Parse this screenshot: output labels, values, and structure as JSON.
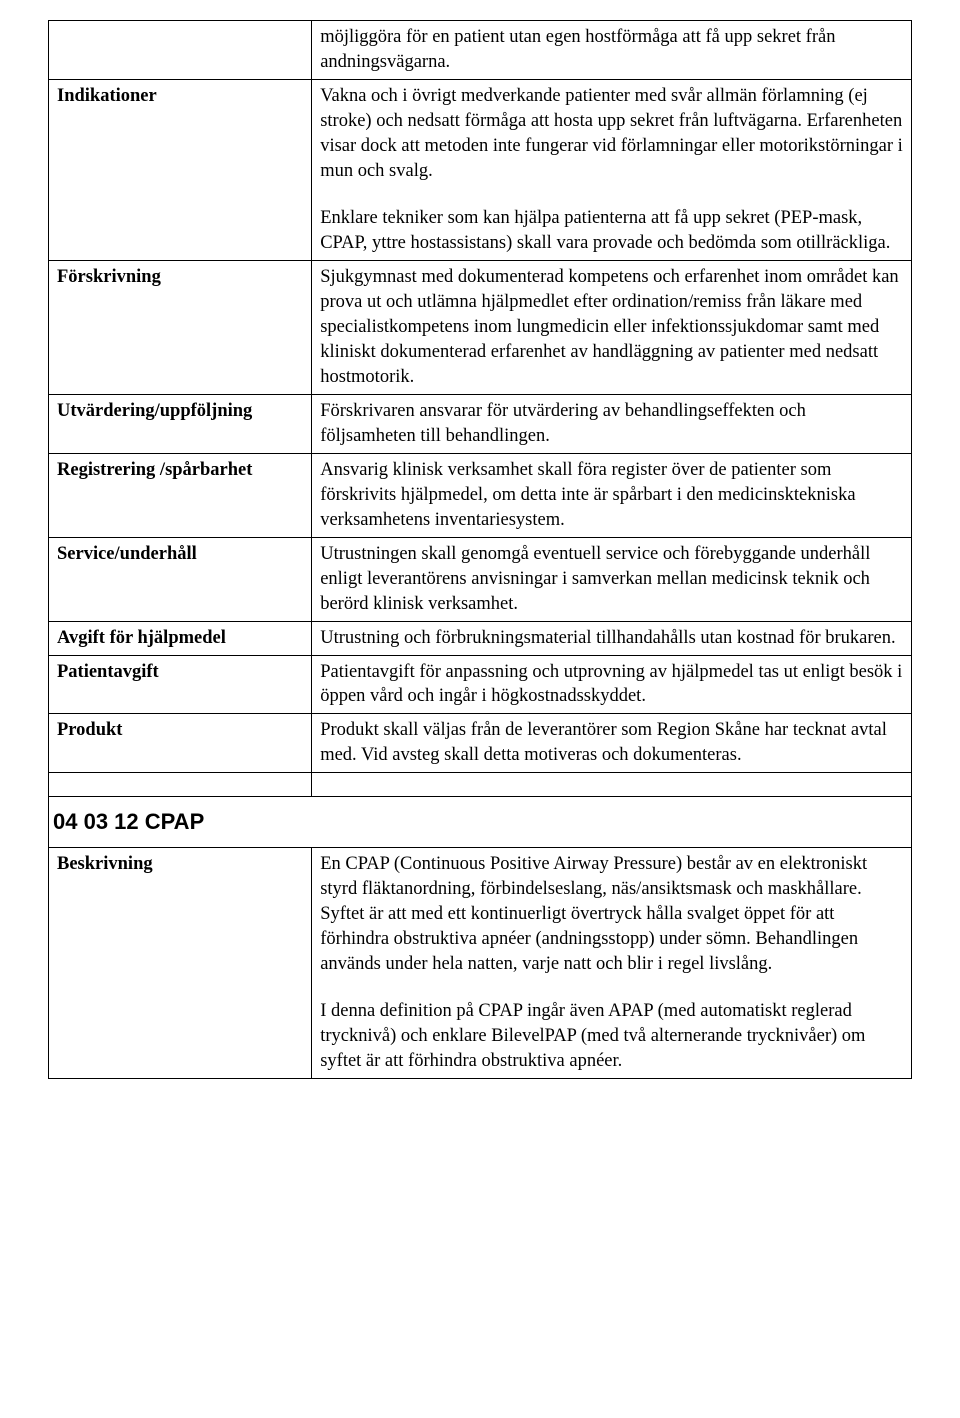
{
  "rows": {
    "r0": {
      "label": "",
      "content": "möjliggöra för en patient utan egen hostförmåga att få upp sekret från andningsvägarna."
    },
    "r1": {
      "label": "Indikationer",
      "p1": "Vakna och i övrigt medverkande patienter med svår allmän förlamning (ej stroke) och nedsatt förmåga att hosta upp sekret från luftvägarna. Erfarenheten visar dock att metoden inte fungerar vid förlamningar eller motorikstörningar i mun och svalg.",
      "p2": "Enklare tekniker som kan hjälpa patienterna att få upp sekret (PEP-mask, CPAP, yttre hostassistans) skall vara provade och bedömda som otillräckliga."
    },
    "r2": {
      "label": "Förskrivning",
      "content": "Sjukgymnast med dokumenterad kompetens och erfarenhet inom området kan prova ut och utlämna hjälpmedlet efter ordination/remiss från läkare med specialistkompetens inom lungmedicin eller infektionssjukdomar samt med kliniskt dokumenterad erfarenhet av handläggning av patienter med nedsatt hostmotorik."
    },
    "r3": {
      "label": "Utvärdering/uppföljning",
      "content": "Förskrivaren ansvarar för utvärdering av behandlingseffekten och följsamheten till behandlingen."
    },
    "r4": {
      "label": "Registrering /spårbarhet",
      "content": "Ansvarig klinisk verksamhet skall föra register över de patienter som förskrivits hjälpmedel, om detta inte är spårbart i den medicinsktekniska verksamhetens inventariesystem."
    },
    "r5": {
      "label": "Service/underhåll",
      "content": "Utrustningen skall genomgå eventuell service och förebyggande underhåll enligt leverantörens anvisningar i samverkan mellan medicinsk teknik och berörd klinisk verksamhet."
    },
    "r6": {
      "label": "Avgift för hjälpmedel",
      "content": "Utrustning och förbrukningsmaterial tillhandahålls utan kostnad för brukaren."
    },
    "r7": {
      "label": "Patientavgift",
      "content": "Patientavgift för anpassning och utprovning av hjälpmedel tas ut enligt besök i öppen vård och ingår i högkostnadsskyddet."
    },
    "r8": {
      "label": "Produkt",
      "content": "Produkt skall väljas från de leverantörer som Region Skåne har tecknat avtal med. Vid avsteg skall detta motiveras och dokumenteras."
    },
    "section": {
      "title": "04 03 12 CPAP"
    },
    "r10": {
      "label": "Beskrivning",
      "p1": "En CPAP (Continuous Positive Airway Pressure) består av en elektroniskt styrd fläktanordning, förbindelseslang, näs/ansiktsmask och maskhållare. Syftet är att med ett kontinuerligt övertryck hålla svalget öppet för att förhindra obstruktiva apnéer (andningsstopp) under sömn. Behandlingen används under hela natten, varje natt och blir i regel livslång.",
      "p2": "I denna definition på CPAP ingår även APAP (med automatiskt reglerad trycknivå) och enklare  BilevelPAP (med två alternerande trycknivåer) om syftet är att förhindra obstruktiva apnéer."
    }
  }
}
